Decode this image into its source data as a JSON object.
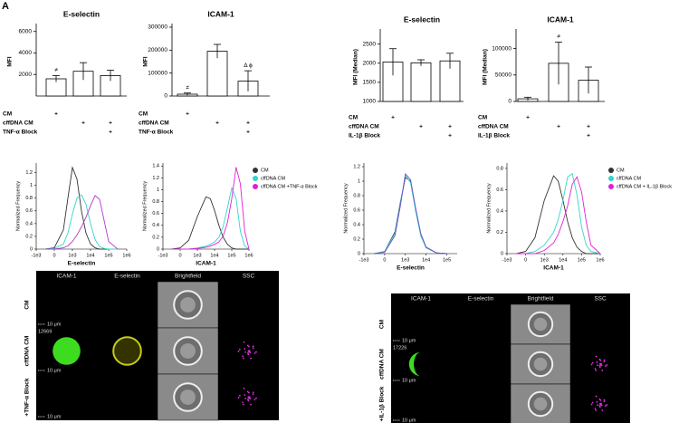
{
  "panel_label": "A",
  "chart_data": [
    {
      "type": "bar",
      "title": "E-selectin",
      "y_label": "MFI",
      "ylim": [
        0,
        6400
      ],
      "yticks": [
        2000,
        4000,
        6000
      ],
      "categories": [
        "CM",
        "cffDNA CM",
        "TNF-α Block"
      ],
      "values": [
        1600,
        2300,
        1900
      ],
      "errors": [
        300,
        800,
        500
      ],
      "conditions": [
        {
          "label": "CM",
          "plus": [
            0
          ]
        },
        {
          "label": "cffDNA CM",
          "plus": [
            1,
            2
          ]
        },
        {
          "label": "TNF-α Block",
          "plus": [
            2
          ]
        }
      ],
      "plus_symbol": "+",
      "annotations": [
        {
          "text": "≠",
          "category": 0
        }
      ]
    },
    {
      "type": "bar",
      "title": "ICAM-1",
      "y_label": "MFI",
      "ylim": [
        0,
        300000
      ],
      "yticks": [
        0,
        100000,
        200000,
        300000
      ],
      "categories": [
        "CM",
        "cffDNA CM",
        "TNF-α Block"
      ],
      "values": [
        8000,
        195000,
        65000
      ],
      "errors": [
        5000,
        30000,
        45000
      ],
      "conditions": [
        {
          "label": "CM",
          "plus": [
            0
          ]
        },
        {
          "label": "cffDNA CM",
          "plus": [
            1,
            2
          ]
        },
        {
          "label": "TNF-α Block",
          "plus": [
            2
          ]
        }
      ],
      "plus_symbol": "+",
      "annotations": [
        {
          "text": "≠",
          "category": 0
        },
        {
          "text": "Δ ϕ",
          "category": 2
        }
      ]
    },
    {
      "type": "bar",
      "title": "E-selectin",
      "y_label": "MFI (Median)",
      "ylim": [
        1000,
        2800
      ],
      "yticks": [
        1000,
        1500,
        2000,
        2500
      ],
      "categories": [
        "CM",
        "cffDNA CM",
        "IL-1β Block"
      ],
      "values": [
        2030,
        2010,
        2060
      ],
      "errors": [
        350,
        80,
        200
      ],
      "conditions": [
        {
          "label": "CM",
          "plus": [
            0
          ]
        },
        {
          "label": "cffDNA CM",
          "plus": [
            1,
            2
          ]
        },
        {
          "label": "IL-1β Block",
          "plus": [
            2
          ]
        }
      ],
      "plus_symbol": "+",
      "annotations": []
    },
    {
      "type": "bar",
      "title": "ICAM-1",
      "y_label": "MFI (Median)",
      "ylim": [
        0,
        130000
      ],
      "yticks": [
        0,
        50000,
        100000
      ],
      "categories": [
        "CM",
        "cffDNA CM",
        "IL-1β Block"
      ],
      "values": [
        5000,
        72000,
        40000
      ],
      "errors": [
        3000,
        40000,
        25000
      ],
      "conditions": [
        {
          "label": "CM",
          "plus": [
            0
          ]
        },
        {
          "label": "cffDNA CM",
          "plus": [
            1,
            2
          ]
        },
        {
          "label": "IL-1β Block",
          "plus": [
            2
          ]
        }
      ],
      "plus_symbol": "+",
      "annotations": [
        {
          "text": "≠",
          "category": 1
        }
      ]
    },
    {
      "type": "line",
      "x_label": "E-selectin",
      "y_label": "Normalized Frequency",
      "xlim": [
        0,
        5
      ],
      "ylim": [
        0,
        1.35
      ],
      "xticks": [
        {
          "value": 0,
          "label": "-1e3"
        },
        {
          "value": 1,
          "label": "0"
        },
        {
          "value": 2,
          "label": "1e3"
        },
        {
          "value": 3,
          "label": "1e4"
        },
        {
          "value": 4,
          "label": "1e5"
        },
        {
          "value": 5,
          "label": "1e6"
        }
      ],
      "yticks": [
        0,
        0.2,
        0.4,
        0.6,
        0.8,
        1,
        1.2
      ],
      "x": [
        0.5,
        1,
        1.5,
        1.75,
        2,
        2.25,
        2.5,
        2.75,
        3,
        3.25,
        3.5,
        3.75,
        4,
        4.5
      ],
      "series": [
        {
          "color": "#333333",
          "values": [
            0,
            0.02,
            0.3,
            0.8,
            1.28,
            1.1,
            0.6,
            0.25,
            0.08,
            0.02,
            0,
            0,
            0,
            0
          ]
        },
        {
          "color": "#33d6c8",
          "values": [
            0,
            0.01,
            0.08,
            0.25,
            0.55,
            0.8,
            0.85,
            0.7,
            0.4,
            0.15,
            0.04,
            0.01,
            0,
            0
          ]
        },
        {
          "color": "#b03ac8",
          "values": [
            0,
            0,
            0.02,
            0.05,
            0.12,
            0.22,
            0.35,
            0.5,
            0.68,
            0.84,
            0.78,
            0.45,
            0.12,
            0
          ]
        }
      ]
    },
    {
      "type": "line",
      "x_label": "ICAM-1",
      "y_label": "Normalized Frequency",
      "xlim": [
        0,
        5
      ],
      "ylim": [
        0,
        1.45
      ],
      "xticks": [
        {
          "value": 0,
          "label": "-1e3"
        },
        {
          "value": 1,
          "label": "0"
        },
        {
          "value": 2,
          "label": "1e3"
        },
        {
          "value": 3,
          "label": "1e4"
        },
        {
          "value": 4,
          "label": "1e5"
        },
        {
          "value": 5,
          "label": "1e6"
        }
      ],
      "yticks": [
        0,
        0.2,
        0.4,
        0.6,
        0.8,
        1,
        1.2,
        1.4
      ],
      "x": [
        0.5,
        1,
        1.5,
        2,
        2.5,
        2.75,
        3,
        3.25,
        3.5,
        3.75,
        4,
        4.25,
        4.5,
        4.75,
        5
      ],
      "legend": "right",
      "series": [
        {
          "name": "CM",
          "color": "#333333",
          "values": [
            0,
            0.02,
            0.15,
            0.55,
            0.88,
            0.85,
            0.65,
            0.4,
            0.2,
            0.08,
            0.02,
            0,
            0,
            0,
            0
          ]
        },
        {
          "name": "cffDNA CM",
          "color": "#33d6c8",
          "values": [
            0,
            0,
            0,
            0.02,
            0.05,
            0.08,
            0.12,
            0.2,
            0.38,
            0.7,
            1.03,
            0.85,
            0.3,
            0.05,
            0
          ]
        },
        {
          "name": "cffDNA CM +TNF-α Block",
          "color": "#e020d8",
          "values": [
            0,
            0,
            0,
            0.01,
            0.03,
            0.05,
            0.08,
            0.12,
            0.22,
            0.45,
            0.85,
            1.38,
            1.1,
            0.3,
            0
          ]
        }
      ]
    },
    {
      "type": "line",
      "x_label": "E-selectin",
      "y_label": "Normalized Frequency",
      "xlim": [
        0,
        4.5
      ],
      "ylim": [
        0,
        1.25
      ],
      "xticks": [
        {
          "value": 0,
          "label": "-1e3"
        },
        {
          "value": 1,
          "label": "0"
        },
        {
          "value": 2,
          "label": "1e3"
        },
        {
          "value": 3,
          "label": "1e4"
        },
        {
          "value": 4,
          "label": "1e5"
        }
      ],
      "yticks": [
        0,
        0.2,
        0.4,
        0.6,
        0.8,
        1,
        1.2
      ],
      "x": [
        0.5,
        1,
        1.5,
        1.75,
        2,
        2.25,
        2.5,
        2.75,
        3,
        3.5,
        4
      ],
      "series": [
        {
          "color": "#333333",
          "values": [
            0,
            0.03,
            0.3,
            0.7,
            1.05,
            1.0,
            0.6,
            0.25,
            0.08,
            0.01,
            0
          ]
        },
        {
          "color": "#33d6c8",
          "values": [
            0,
            0.03,
            0.28,
            0.68,
            1.08,
            0.98,
            0.58,
            0.24,
            0.08,
            0.01,
            0
          ]
        },
        {
          "color": "#6a4cc8",
          "values": [
            0,
            0.02,
            0.25,
            0.65,
            1.1,
            1.02,
            0.62,
            0.27,
            0.09,
            0.01,
            0
          ]
        }
      ]
    },
    {
      "type": "line",
      "x_label": "ICAM-1",
      "y_label": "Normalized Frequency",
      "xlim": [
        0,
        5
      ],
      "ylim": [
        0,
        0.85
      ],
      "xticks": [
        {
          "value": 0,
          "label": "-1e3"
        },
        {
          "value": 1,
          "label": "0"
        },
        {
          "value": 2,
          "label": "1e3"
        },
        {
          "value": 3,
          "label": "1e4"
        },
        {
          "value": 4,
          "label": "1e5"
        },
        {
          "value": 5,
          "label": "1e6"
        }
      ],
      "yticks": [
        0,
        0.2,
        0.4,
        0.6,
        0.8
      ],
      "x": [
        0.5,
        1,
        1.5,
        2,
        2.5,
        2.75,
        3,
        3.25,
        3.5,
        3.75,
        4,
        4.25,
        4.5,
        5
      ],
      "legend": "right",
      "series": [
        {
          "name": "CM",
          "color": "#333333",
          "values": [
            0,
            0.02,
            0.15,
            0.5,
            0.73,
            0.68,
            0.5,
            0.3,
            0.15,
            0.06,
            0.02,
            0,
            0,
            0
          ]
        },
        {
          "name": "cffDNA CM",
          "color": "#33d6c8",
          "values": [
            0,
            0,
            0.02,
            0.08,
            0.2,
            0.32,
            0.5,
            0.72,
            0.75,
            0.55,
            0.25,
            0.08,
            0.02,
            0
          ]
        },
        {
          "name": "cffDNA CM + IL-1β  Block",
          "color": "#e020d8",
          "values": [
            0,
            0,
            0,
            0.03,
            0.1,
            0.18,
            0.3,
            0.45,
            0.65,
            0.72,
            0.58,
            0.3,
            0.08,
            0
          ]
        }
      ]
    }
  ],
  "imaging": [
    {
      "columns": [
        "ICAM-1",
        "E-selectin",
        "Brightfield",
        "SSC"
      ],
      "rows": [
        "CM",
        "cffDNA CM",
        "+TNF-α Block"
      ],
      "scale_label": "10 μm",
      "event_label": "12669"
    },
    {
      "columns": [
        "ICAM-1",
        "E-selectin",
        "Brightfield",
        "SSC"
      ],
      "rows": [
        "CM",
        "cffDNA CM",
        "+IL-1β Block"
      ],
      "scale_label": "10 μm",
      "event_label": "17226"
    }
  ]
}
